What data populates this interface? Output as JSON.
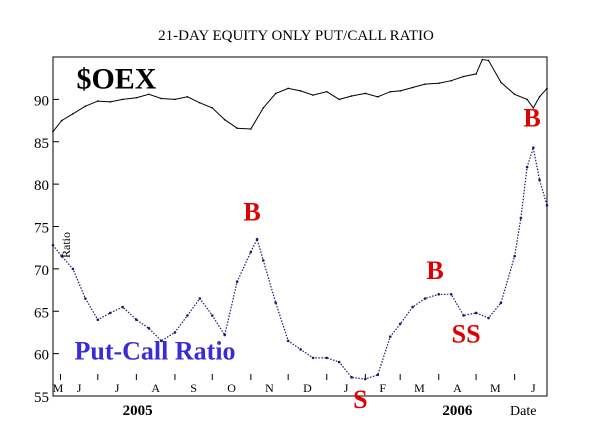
{
  "chart_data": {
    "type": "line",
    "title": "21-DAY EQUITY ONLY PUT/CALL RATIO",
    "ylabel": "Ratio",
    "xlabel": "Date",
    "ylim": [
      55,
      95
    ],
    "y_ticks": [
      55,
      60,
      65,
      70,
      75,
      80,
      85,
      90
    ],
    "x_range": [
      "2005-05-25",
      "2006-06-26"
    ],
    "month_ticks": [
      {
        "label": "M",
        "date": "2005-05-31"
      },
      {
        "label": "J",
        "date": "2005-06-30"
      },
      {
        "label": "J",
        "date": "2005-07-31"
      },
      {
        "label": "A",
        "date": "2005-08-31"
      },
      {
        "label": "S",
        "date": "2005-09-30"
      },
      {
        "label": "O",
        "date": "2005-10-31"
      },
      {
        "label": "N",
        "date": "2005-11-30"
      },
      {
        "label": "D",
        "date": "2005-12-31"
      },
      {
        "label": "J",
        "date": "2006-01-31"
      },
      {
        "label": "F",
        "date": "2006-02-28"
      },
      {
        "label": "M",
        "date": "2006-03-31"
      },
      {
        "label": "A",
        "date": "2006-04-30"
      },
      {
        "label": "M",
        "date": "2006-05-31"
      },
      {
        "label": "J",
        "date": "2006-06-30"
      }
    ],
    "year_labels": [
      {
        "label": "2005",
        "date": "2005-08-01"
      },
      {
        "label": "2006",
        "date": "2006-04-15"
      }
    ],
    "series": [
      {
        "name": "$OEX",
        "color": "#000000",
        "points": [
          [
            "2005-05-25",
            86.2
          ],
          [
            "2005-06-01",
            87.5
          ],
          [
            "2005-06-10",
            88.3
          ],
          [
            "2005-06-20",
            89.2
          ],
          [
            "2005-06-30",
            89.8
          ],
          [
            "2005-07-10",
            89.7
          ],
          [
            "2005-07-20",
            90.0
          ],
          [
            "2005-07-31",
            90.2
          ],
          [
            "2005-08-10",
            90.6
          ],
          [
            "2005-08-20",
            90.1
          ],
          [
            "2005-08-31",
            90.0
          ],
          [
            "2005-09-10",
            90.3
          ],
          [
            "2005-09-20",
            89.6
          ],
          [
            "2005-09-30",
            89.0
          ],
          [
            "2005-10-10",
            87.6
          ],
          [
            "2005-10-20",
            86.6
          ],
          [
            "2005-10-31",
            86.5
          ],
          [
            "2005-11-10",
            89.0
          ],
          [
            "2005-11-20",
            90.7
          ],
          [
            "2005-11-30",
            91.3
          ],
          [
            "2005-12-10",
            91.0
          ],
          [
            "2005-12-20",
            90.5
          ],
          [
            "2005-12-31",
            90.9
          ],
          [
            "2006-01-10",
            90.0
          ],
          [
            "2006-01-20",
            90.4
          ],
          [
            "2006-01-31",
            90.7
          ],
          [
            "2006-02-10",
            90.3
          ],
          [
            "2006-02-20",
            90.9
          ],
          [
            "2006-02-28",
            91.0
          ],
          [
            "2006-03-10",
            91.4
          ],
          [
            "2006-03-20",
            91.8
          ],
          [
            "2006-03-31",
            91.9
          ],
          [
            "2006-04-10",
            92.2
          ],
          [
            "2006-04-20",
            92.7
          ],
          [
            "2006-04-30",
            93.0
          ],
          [
            "2006-05-05",
            94.7
          ],
          [
            "2006-05-10",
            94.6
          ],
          [
            "2006-05-20",
            92.0
          ],
          [
            "2006-05-31",
            90.6
          ],
          [
            "2006-06-10",
            90.0
          ],
          [
            "2006-06-15",
            89.0
          ],
          [
            "2006-06-20",
            90.3
          ],
          [
            "2006-06-26",
            91.3
          ]
        ]
      },
      {
        "name": "Put-Call Ratio",
        "color": "#1a1a6e",
        "points": [
          [
            "2005-05-25",
            72.8
          ],
          [
            "2005-06-01",
            71.5
          ],
          [
            "2005-06-10",
            70.0
          ],
          [
            "2005-06-20",
            66.5
          ],
          [
            "2005-06-30",
            64.0
          ],
          [
            "2005-07-10",
            64.8
          ],
          [
            "2005-07-20",
            65.5
          ],
          [
            "2005-07-31",
            64.0
          ],
          [
            "2005-08-10",
            63.0
          ],
          [
            "2005-08-20",
            61.5
          ],
          [
            "2005-08-31",
            62.5
          ],
          [
            "2005-09-10",
            64.5
          ],
          [
            "2005-09-20",
            66.5
          ],
          [
            "2005-09-30",
            64.5
          ],
          [
            "2005-10-10",
            62.2
          ],
          [
            "2005-10-20",
            68.5
          ],
          [
            "2005-10-31",
            72.0
          ],
          [
            "2005-11-05",
            73.5
          ],
          [
            "2005-11-10",
            71.0
          ],
          [
            "2005-11-20",
            66.0
          ],
          [
            "2005-11-30",
            61.5
          ],
          [
            "2005-12-10",
            60.5
          ],
          [
            "2005-12-20",
            59.5
          ],
          [
            "2005-12-31",
            59.5
          ],
          [
            "2006-01-10",
            59.0
          ],
          [
            "2006-01-20",
            57.2
          ],
          [
            "2006-01-31",
            57.0
          ],
          [
            "2006-02-10",
            57.5
          ],
          [
            "2006-02-20",
            62.0
          ],
          [
            "2006-02-28",
            63.5
          ],
          [
            "2006-03-10",
            65.5
          ],
          [
            "2006-03-20",
            66.5
          ],
          [
            "2006-03-31",
            67.0
          ],
          [
            "2006-04-10",
            67.0
          ],
          [
            "2006-04-20",
            64.5
          ],
          [
            "2006-04-30",
            64.8
          ],
          [
            "2006-05-10",
            64.2
          ],
          [
            "2006-05-20",
            66.0
          ],
          [
            "2006-05-31",
            71.5
          ],
          [
            "2006-06-05",
            76.0
          ],
          [
            "2006-06-10",
            82.0
          ],
          [
            "2006-06-15",
            84.3
          ],
          [
            "2006-06-20",
            80.5
          ],
          [
            "2006-06-26",
            77.5
          ]
        ]
      }
    ],
    "annotations": [
      {
        "text": "$OEX",
        "kind": "series-label",
        "date": "2005-07-15",
        "value": 91.3
      },
      {
        "text": "Put-Call Ratio",
        "kind": "series-label",
        "date": "2005-08-15",
        "value": 59.3
      },
      {
        "text": "B",
        "kind": "signal",
        "date": "2005-11-01",
        "value": 75.7
      },
      {
        "text": "S",
        "kind": "signal",
        "date": "2006-01-27",
        "value": 53.6
      },
      {
        "text": "B",
        "kind": "signal",
        "date": "2006-03-28",
        "value": 68.8
      },
      {
        "text": "SS",
        "kind": "signal",
        "date": "2006-04-22",
        "value": 61.3
      },
      {
        "text": "B",
        "kind": "signal",
        "date": "2006-06-14",
        "value": 86.8
      }
    ],
    "grid": false,
    "style": {
      "signal_color": "#e00000",
      "label_color": "#3b2bd6",
      "background": "#ffffff"
    }
  }
}
